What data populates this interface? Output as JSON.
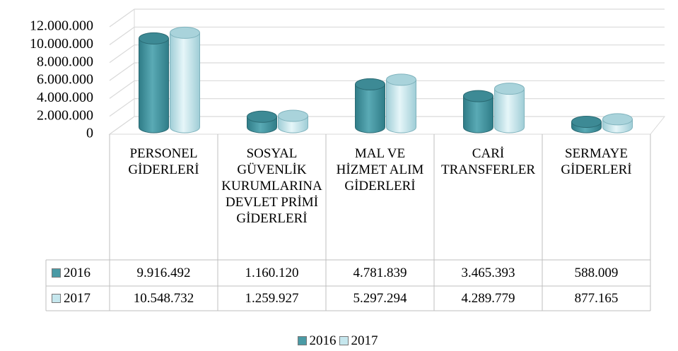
{
  "chart_data": {
    "type": "bar",
    "categories": [
      "PERSONEL GİDERLERİ",
      "SOSYAL GÜVENLİK KURUMLARINA DEVLET PRİMİ GİDERLERİ",
      "MAL VE HİZMET ALIM GİDERLERİ",
      "CARİ TRANSFERLER",
      "SERMAYE GİDERLERİ"
    ],
    "series": [
      {
        "name": "2016",
        "color": "#4a9aa5",
        "values": [
          9916492,
          1160120,
          4781839,
          3465393,
          588009
        ],
        "value_labels": [
          "9.916.492",
          "1.160.120",
          "4.781.839",
          "3.465.393",
          "588.009"
        ]
      },
      {
        "name": "2017",
        "color": "#c6e7ee",
        "values": [
          10548732,
          1259927,
          5297294,
          4289779,
          877165
        ],
        "value_labels": [
          "10.548.732",
          "1.259.927",
          "5.297.294",
          "4.289.779",
          "877.165"
        ]
      }
    ],
    "ylim": [
      0,
      12000000
    ],
    "yticks": [
      0,
      {
        "value": 2000000,
        "label": "2.000.000"
      },
      {
        "value": 4000000,
        "label": "4.000.000"
      },
      {
        "value": 6000000,
        "label": "6.000.000"
      },
      {
        "value": 8000000,
        "label": "8.000.000"
      },
      {
        "value": 10000000,
        "label": "10.000.000"
      },
      {
        "value": 12000000,
        "label": "12.000.000"
      }
    ],
    "grid": true,
    "legend": "bottom"
  }
}
